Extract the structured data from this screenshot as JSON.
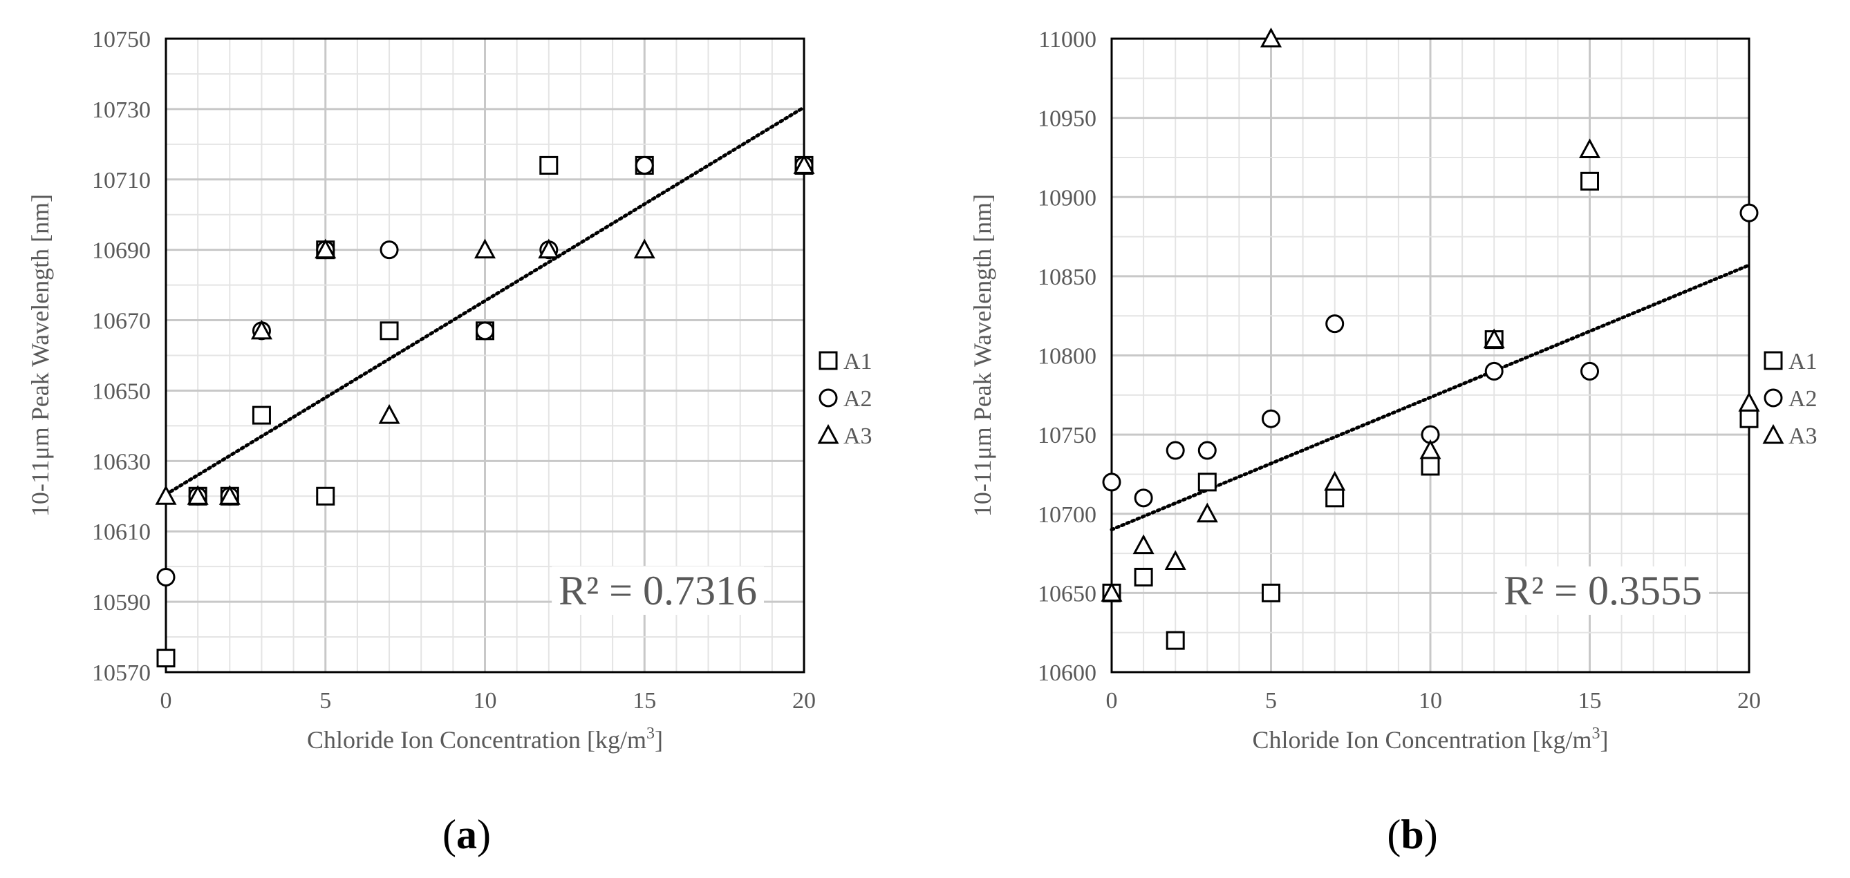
{
  "chart_data": [
    {
      "type": "scatter",
      "panel_label": "a",
      "xlabel": "Chloride Ion Concentration [kg/m",
      "xlabel_superscript": "3",
      "xlabel_suffix": "]",
      "ylabel": "10-11μm Peak Wavelength [nm]",
      "xlim": [
        0,
        20
      ],
      "ylim": [
        10570,
        10750
      ],
      "x_ticks": [
        0,
        5,
        10,
        15,
        20
      ],
      "y_ticks": [
        10570,
        10590,
        10610,
        10630,
        10650,
        10670,
        10690,
        10710,
        10730,
        10750
      ],
      "grid": true,
      "legend_position": "right",
      "annotation": "R² = 0.7316",
      "trendline": {
        "type": "linear",
        "x": [
          0,
          20
        ],
        "y": [
          10620.5,
          10730.5
        ]
      },
      "series": [
        {
          "name": "A1",
          "marker": "square",
          "x": [
            0,
            1,
            2,
            3,
            5,
            5,
            7,
            10,
            12,
            15,
            20
          ],
          "y": [
            10574,
            10620,
            10620,
            10643,
            10620,
            10690,
            10667,
            10667,
            10714,
            10714,
            10714
          ]
        },
        {
          "name": "A2",
          "marker": "circle",
          "x": [
            0,
            1,
            2,
            3,
            5,
            7,
            10,
            12,
            15,
            20
          ],
          "y": [
            10597,
            10620,
            10620,
            10667,
            10690,
            10690,
            10667,
            10690,
            10714,
            10714
          ]
        },
        {
          "name": "A3",
          "marker": "triangle",
          "x": [
            0,
            1,
            2,
            3,
            5,
            7,
            10,
            12,
            15,
            20
          ],
          "y": [
            10620,
            10620,
            10620,
            10667,
            10690,
            10643,
            10690,
            10690,
            10690,
            10714
          ]
        }
      ]
    },
    {
      "type": "scatter",
      "panel_label": "b",
      "xlabel": "Chloride Ion Concentration [kg/m",
      "xlabel_superscript": "3",
      "xlabel_suffix": "]",
      "ylabel": "10-11μm Peak Wavelength [nm]",
      "xlim": [
        0,
        20
      ],
      "ylim": [
        10600,
        11000
      ],
      "x_ticks": [
        0,
        5,
        10,
        15,
        20
      ],
      "y_ticks": [
        10600,
        10650,
        10700,
        10750,
        10800,
        10850,
        10900,
        10950,
        11000
      ],
      "grid": true,
      "legend_position": "right",
      "annotation": "R² = 0.3555",
      "trendline": {
        "type": "linear",
        "x": [
          0,
          20
        ],
        "y": [
          10690,
          10857
        ]
      },
      "series": [
        {
          "name": "A1",
          "marker": "square",
          "x": [
            0,
            1,
            2,
            3,
            5,
            7,
            10,
            12,
            15,
            20
          ],
          "y": [
            10650,
            10660,
            10620,
            10720,
            10650,
            10710,
            10730,
            10810,
            10910,
            10760
          ]
        },
        {
          "name": "A2",
          "marker": "circle",
          "x": [
            0,
            1,
            2,
            3,
            5,
            7,
            10,
            12,
            15,
            20
          ],
          "y": [
            10720,
            10710,
            10740,
            10740,
            10760,
            10820,
            10750,
            10790,
            10790,
            10890
          ]
        },
        {
          "name": "A3",
          "marker": "triangle",
          "x": [
            0,
            1,
            2,
            3,
            5,
            7,
            10,
            12,
            15,
            20
          ],
          "y": [
            10650,
            10680,
            10670,
            10700,
            11000,
            10720,
            10740,
            10810,
            10930,
            10770
          ]
        }
      ]
    }
  ]
}
